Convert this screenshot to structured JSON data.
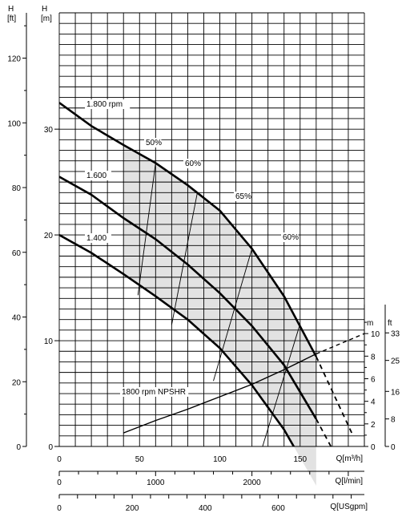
{
  "chart_data": {
    "type": "line",
    "axes": {
      "h_ft": {
        "unit_top": "H",
        "unit": "[ft]",
        "ticks": [
          0,
          20,
          40,
          60,
          80,
          100,
          120
        ],
        "range": [
          0,
          134
        ]
      },
      "h_m": {
        "unit_top": "H",
        "unit": "[m]",
        "ticks": [
          0,
          10,
          20,
          30
        ],
        "range": [
          0,
          41
        ]
      },
      "q_m3h": {
        "unit": "Q[m³/h]",
        "ticks": [
          0,
          50,
          100,
          150
        ],
        "range": [
          0,
          190
        ]
      },
      "q_lmin": {
        "unit": "Q[l/min]",
        "ticks": [
          0,
          1000,
          2000
        ],
        "range": [
          0,
          3167
        ]
      },
      "q_usgpm": {
        "unit": "Q[USgpm]",
        "ticks": [
          0,
          200,
          400,
          600
        ],
        "minor_step": 50,
        "range": [
          0,
          836
        ]
      },
      "npshr_m": {
        "unit": "m",
        "ticks": [
          0,
          2,
          4,
          6,
          8,
          10
        ],
        "range": [
          0,
          12
        ]
      },
      "npshr_ft": {
        "unit": "ft",
        "ticks": [
          0,
          8,
          16,
          25,
          33
        ]
      }
    },
    "series": [
      {
        "name": "1.800 rpm",
        "x": [
          0,
          20,
          40,
          60,
          80,
          100,
          120,
          140,
          160
        ],
        "y": [
          32.5,
          30.3,
          28.5,
          26.8,
          24.7,
          22.3,
          18.7,
          14.2,
          8.5
        ],
        "ext_x": 183,
        "ext_y": 1.0
      },
      {
        "name": "1.600",
        "x": [
          0,
          20,
          40,
          60,
          80,
          100,
          120,
          140,
          160
        ],
        "y": [
          25.5,
          23.8,
          21.6,
          19.6,
          17.2,
          14.5,
          11.4,
          7.7,
          2.6
        ],
        "ext_x": 178,
        "ext_y": -2.5
      },
      {
        "name": "1.400",
        "x": [
          0,
          20,
          40,
          60,
          80,
          100,
          120,
          140,
          160
        ],
        "y": [
          20.0,
          18.3,
          16.3,
          14.2,
          12.0,
          9.3,
          5.8,
          1.6,
          -3.7
        ],
        "ext_x": 174,
        "ext_y": -7.2
      },
      {
        "name": "1800 rpm NPSHR",
        "axis": "npshr_m",
        "x": [
          40,
          60,
          80,
          100,
          120,
          140,
          160
        ],
        "y": [
          1.2,
          2.3,
          3.3,
          4.4,
          5.5,
          6.8,
          8.2
        ],
        "ext_x": 190,
        "ext_y": 10.0
      }
    ],
    "efficiency_labels": [
      "50%",
      "60%",
      "65%",
      "60%"
    ],
    "efficiency_lines": [
      {
        "x": [
          60,
          49
        ],
        "y": [
          26.8,
          14.3
        ]
      },
      {
        "x": [
          86,
          70
        ],
        "y": [
          24.0,
          11.5
        ]
      },
      {
        "x": [
          120,
          96
        ],
        "y": [
          18.7,
          6.2
        ]
      },
      {
        "x": [
          150,
          125
        ],
        "y": [
          11.6,
          -0.8
        ]
      }
    ],
    "shaded_region": {
      "x_range": [
        40,
        160
      ]
    },
    "grid": true
  }
}
